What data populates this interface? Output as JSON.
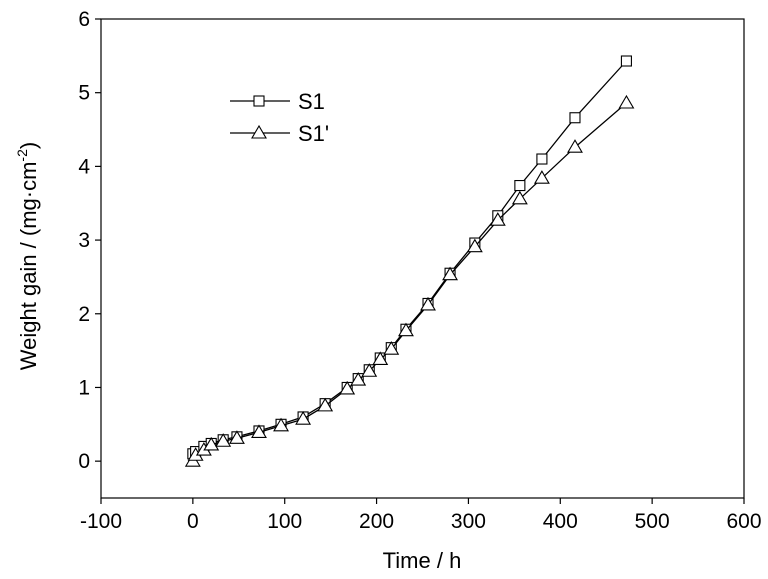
{
  "chart_data": {
    "type": "line",
    "title": "",
    "xlabel": "Time / h",
    "ylabel_main": "Weight gain / (mg·cm",
    "ylabel_sup": "-2",
    "ylabel_close": ")",
    "xlim": [
      -100,
      600
    ],
    "ylim": [
      -0.5,
      6
    ],
    "xticks": [
      -100,
      0,
      100,
      200,
      300,
      400,
      500,
      600
    ],
    "yticks": [
      0,
      1,
      2,
      3,
      4,
      5,
      6
    ],
    "grid": false,
    "legend_position": "top-left",
    "series": [
      {
        "name": "S1",
        "marker": "square",
        "x": [
          0,
          3,
          12,
          20,
          33,
          48,
          72,
          96,
          120,
          144,
          168,
          180,
          192,
          204,
          216,
          232,
          256,
          280,
          307,
          332,
          356,
          380,
          416,
          472
        ],
        "y": [
          0.1,
          0.13,
          0.2,
          0.24,
          0.29,
          0.33,
          0.41,
          0.5,
          0.6,
          0.78,
          1.0,
          1.12,
          1.24,
          1.4,
          1.54,
          1.79,
          2.14,
          2.55,
          2.96,
          3.33,
          3.74,
          4.1,
          4.66,
          5.43
        ]
      },
      {
        "name": "S1'",
        "marker": "triangle",
        "x": [
          0,
          3,
          12,
          20,
          33,
          48,
          72,
          96,
          120,
          144,
          168,
          180,
          192,
          204,
          216,
          232,
          256,
          280,
          307,
          332,
          356,
          380,
          416,
          472
        ],
        "y": [
          0.0,
          0.08,
          0.15,
          0.22,
          0.27,
          0.31,
          0.39,
          0.48,
          0.57,
          0.75,
          0.98,
          1.1,
          1.22,
          1.38,
          1.52,
          1.77,
          2.12,
          2.53,
          2.91,
          3.27,
          3.56,
          3.84,
          4.26,
          4.86
        ]
      }
    ]
  }
}
